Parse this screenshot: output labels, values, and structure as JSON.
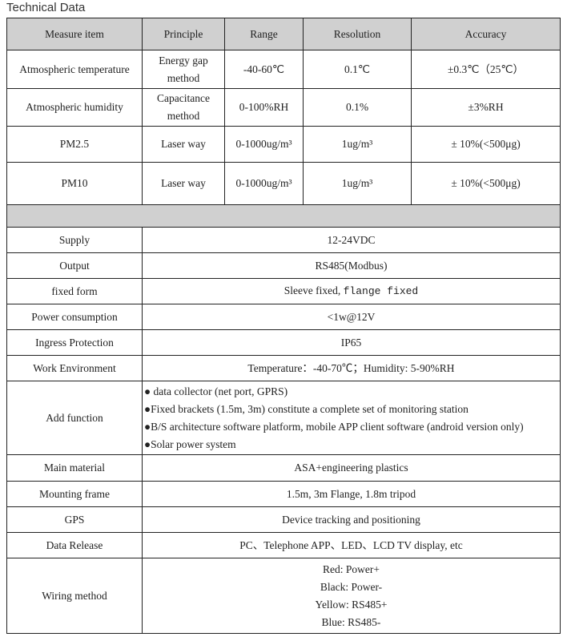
{
  "title": "Technical Data",
  "headers": [
    "Measure item",
    "Principle",
    "Range",
    "Resolution",
    "Accuracy"
  ],
  "measures": [
    {
      "item": "Atmospheric temperature",
      "principle": "Energy gap method",
      "range": "-40-60℃",
      "resolution": "0.1℃",
      "accuracy": "±0.3℃（25℃）"
    },
    {
      "item": "Atmospheric humidity",
      "principle": "Capacitance method",
      "range": "0-100%RH",
      "resolution": "0.1%",
      "accuracy": "±3%RH"
    },
    {
      "item": "PM2.5",
      "principle": "Laser way",
      "range": "0-1000ug/m³",
      "resolution": "1ug/m³",
      "accuracy": "± 10%(<500μg)"
    },
    {
      "item": "PM10",
      "principle": "Laser way",
      "range": "0-1000ug/m³",
      "resolution": "1ug/m³",
      "accuracy": "± 10%(<500μg)"
    }
  ],
  "specs": {
    "supply": {
      "label": "Supply",
      "value": "12-24VDC"
    },
    "output": {
      "label": "Output",
      "value": "RS485(Modbus)"
    },
    "fixed_form": {
      "label": "fixed form",
      "value_a": "Sleeve fixed,",
      "value_b": "flange fixed"
    },
    "power": {
      "label": "Power consumption",
      "value": "<1w@12V"
    },
    "ingress": {
      "label": "Ingress Protection",
      "value": "IP65"
    },
    "environment": {
      "label": "Work Environment",
      "value": "Temperature：-40-70℃；Humidity: 5-90%RH"
    },
    "add_function": {
      "label": "Add function",
      "items": [
        "● data collector (net port, GPRS)",
        "●Fixed brackets (1.5m, 3m) constitute a complete set of monitoring station",
        "●B/S architecture software platform, mobile APP client software (android version only)",
        "●Solar power system"
      ]
    },
    "material": {
      "label": "Main material",
      "value": "ASA+engineering plastics"
    },
    "mounting": {
      "label": "Mounting frame",
      "value": "1.5m, 3m Flange, 1.8m tripod"
    },
    "gps": {
      "label": "GPS",
      "value": "Device tracking and positioning"
    },
    "release": {
      "label": "Data Release",
      "value": "PC、Telephone APP、LED、LCD TV display, etc"
    },
    "wiring": {
      "label": "Wiring method",
      "items": [
        "Red: Power+",
        "Black: Power-",
        "Yellow: RS485+",
        "Blue: RS485-"
      ]
    }
  }
}
